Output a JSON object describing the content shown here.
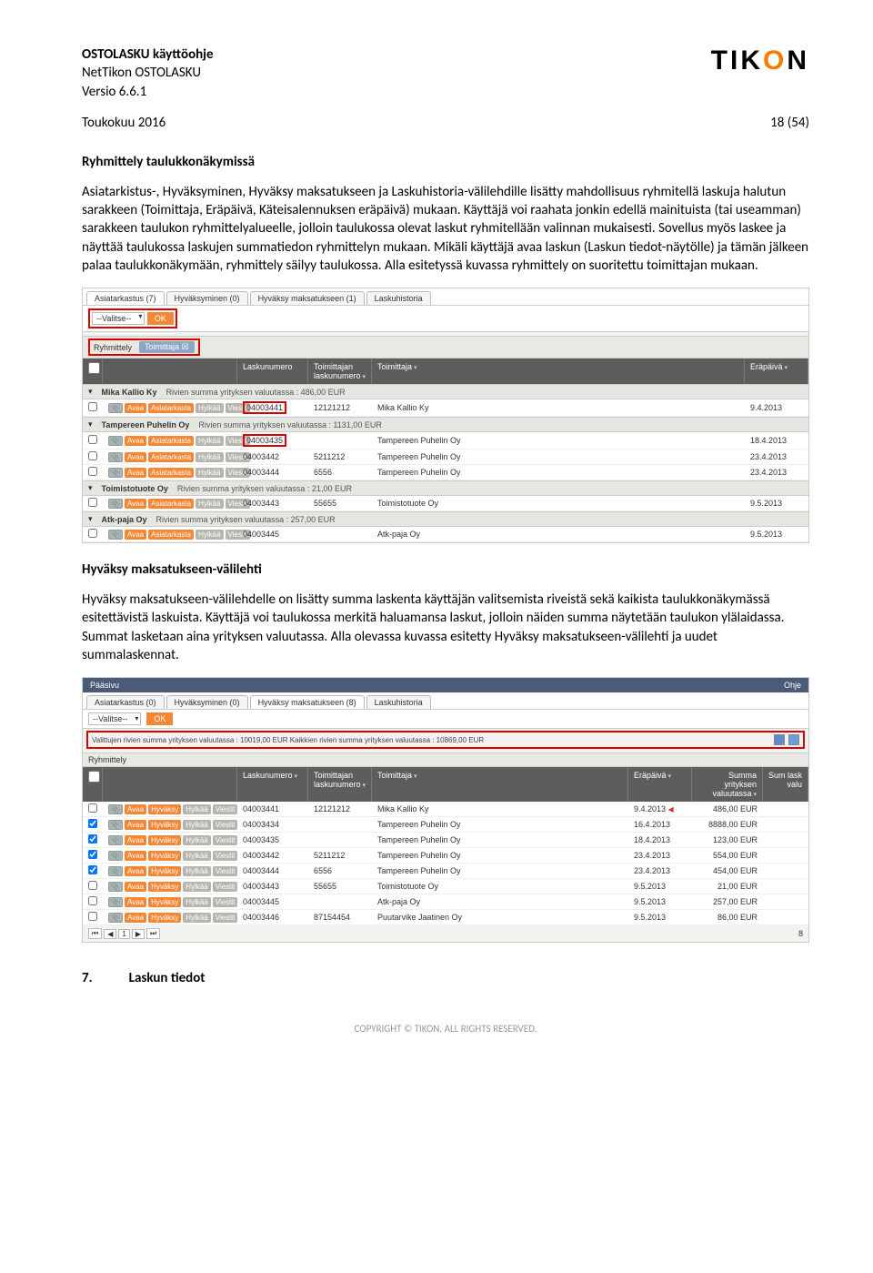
{
  "header": {
    "doc_title_bold": "OSTOLASKU käyttöohje",
    "doc_product": "NetTikon OSTOLASKU",
    "doc_version": "Versio 6.6.1",
    "logo_t": "TIK",
    "logo_o": "O",
    "logo_n": "N",
    "date": "Toukokuu 2016",
    "page": "18 (54)"
  },
  "section1": {
    "title": "Ryhmittely taulukkonäkymissä",
    "p1": "Asiatarkistus-, Hyväksyminen, Hyväksy maksatukseen ja Laskuhistoria-välilehdille lisätty mahdollisuus ryhmitellä laskuja halutun sarakkeen (Toimittaja, Eräpäivä, Käteisalennuksen eräpäivä) mukaan. Käyttäjä voi raahata jonkin edellä mainituista (tai useamman) sarakkeen taulukon ryhmittelyalueelle, jolloin taulukossa olevat laskut ryhmitellään valinnan mukaisesti. Sovellus myös laskee ja näyttää taulukossa laskujen summatiedon ryhmittelyn mukaan. Mikäli käyttäjä avaa laskun (Laskun tiedot-näytölle) ja tämän jälkeen palaa taulukkonäkymään, ryhmittely säilyy taulukossa. Alla esitetyssä kuvassa ryhmittely on suoritettu toimittajan mukaan."
  },
  "shot1": {
    "tabs": [
      "Asiatarkastus (7)",
      "Hyväksyminen (0)",
      "Hyväksy maksatukseen (1)",
      "Laskuhistoria"
    ],
    "valitse": "--Valitse--",
    "ok": "OK",
    "ryhmittely": "Ryhmittely",
    "chip": "Toimittaja",
    "headers": {
      "lasku": "Laskunumero",
      "tl": "Toimittajan laskunumero",
      "sup": "Toimittaja",
      "date": "Eräpäivä"
    },
    "btns": {
      "avaa": "Avaa",
      "asia": "Asiatarkasta",
      "hyl": "Hylkää",
      "vie": "Viestit"
    },
    "groups": [
      {
        "name": "Mika Kallio Ky",
        "sum": "Rivien summa yrityksen valuutassa : 486,00 EUR",
        "rows": [
          {
            "num": "04003441",
            "tl": "12121212",
            "sup": "Mika Kallio Ky",
            "date": "9.4.2013",
            "red": true
          }
        ]
      },
      {
        "name": "Tampereen Puhelin Oy",
        "sum": "Rivien summa yrityksen valuutassa : 1131,00 EUR",
        "rows": [
          {
            "num": "04003435",
            "tl": "",
            "sup": "Tampereen Puhelin Oy",
            "date": "18.4.2013",
            "red": true
          },
          {
            "num": "04003442",
            "tl": "5211212",
            "sup": "Tampereen Puhelin Oy",
            "date": "23.4.2013"
          },
          {
            "num": "04003444",
            "tl": "6556",
            "sup": "Tampereen Puhelin Oy",
            "date": "23.4.2013"
          }
        ]
      },
      {
        "name": "Toimistotuote Oy",
        "sum": "Rivien summa yrityksen valuutassa : 21,00 EUR",
        "rows": [
          {
            "num": "04003443",
            "tl": "55655",
            "sup": "Toimistotuote Oy",
            "date": "9.5.2013"
          }
        ]
      },
      {
        "name": "Atk-paja Oy",
        "sum": "Rivien summa yrityksen valuutassa : 257,00 EUR",
        "rows": [
          {
            "num": "04003445",
            "tl": "",
            "sup": "Atk-paja Oy",
            "date": "9.5.2013"
          }
        ]
      }
    ]
  },
  "section2": {
    "title": "Hyväksy maksatukseen-välilehti",
    "p1": "Hyväksy maksatukseen-välilehdelle on lisätty summa laskenta käyttäjän valitsemista riveistä sekä kaikista taulukkonäkymässä esitettävistä laskuista. Käyttäjä voi taulukossa merkitä haluamansa laskut, jolloin näiden summa näytetään taulukon ylälaidassa. Summat lasketaan aina yrityksen valuutassa. Alla olevassa kuvassa esitetty Hyväksy maksatukseen-välilehti ja uudet summalaskennat."
  },
  "shot2": {
    "topbar_left": "Pääsivu",
    "topbar_right": "Ohje",
    "tabs": [
      "Asiatarkastus (0)",
      "Hyväksyminen (0)",
      "Hyväksy maksatukseen (8)",
      "Laskuhistoria"
    ],
    "valitse": "--Valitse--",
    "ok": "OK",
    "sums": "Valittujen rivien summa yrityksen valuutassa : 10019,00 EUR     Kaikkien rivien summa yrityksen valuutassa : 10869,00 EUR",
    "ryhmittely": "Ryhmittely",
    "headers": {
      "lasku": "Laskunumero",
      "tl": "Toimittajan laskunumero",
      "sup": "Toimittaja",
      "date": "Eräpäivä",
      "amt": "Summa yrityksen valuutassa",
      "amt2": "Sum lask valu"
    },
    "btns": {
      "avaa": "Avaa",
      "hyv": "Hyväksy",
      "hyl": "Hylkää",
      "vie": "Viestit"
    },
    "rows": [
      {
        "chk": false,
        "num": "04003441",
        "tl": "12121212",
        "sup": "Mika Kallio Ky",
        "date": "9.4.2013",
        "amt": "486,00 EUR",
        "flag": true
      },
      {
        "chk": true,
        "num": "04003434",
        "tl": "",
        "sup": "Tampereen Puhelin Oy",
        "date": "16.4.2013",
        "amt": "8888,00 EUR"
      },
      {
        "chk": true,
        "num": "04003435",
        "tl": "",
        "sup": "Tampereen Puhelin Oy",
        "date": "18.4.2013",
        "amt": "123,00 EUR"
      },
      {
        "chk": true,
        "num": "04003442",
        "tl": "5211212",
        "sup": "Tampereen Puhelin Oy",
        "date": "23.4.2013",
        "amt": "554,00 EUR"
      },
      {
        "chk": true,
        "num": "04003444",
        "tl": "6556",
        "sup": "Tampereen Puhelin Oy",
        "date": "23.4.2013",
        "amt": "454,00 EUR"
      },
      {
        "chk": false,
        "num": "04003443",
        "tl": "55655",
        "sup": "Toimistotuote Oy",
        "date": "9.5.2013",
        "amt": "21,00 EUR"
      },
      {
        "chk": false,
        "num": "04003445",
        "tl": "",
        "sup": "Atk-paja Oy",
        "date": "9.5.2013",
        "amt": "257,00 EUR"
      },
      {
        "chk": false,
        "num": "04003446",
        "tl": "87154454",
        "sup": "Puutarvike Jaatinen Oy",
        "date": "9.5.2013",
        "amt": "86,00 EUR"
      }
    ],
    "pager_total": "8"
  },
  "footer": {
    "num": "7.",
    "title": "Laskun tiedot",
    "copyright": "COPYRIGHT © TIKON. ALL RIGHTS RESERVED."
  }
}
